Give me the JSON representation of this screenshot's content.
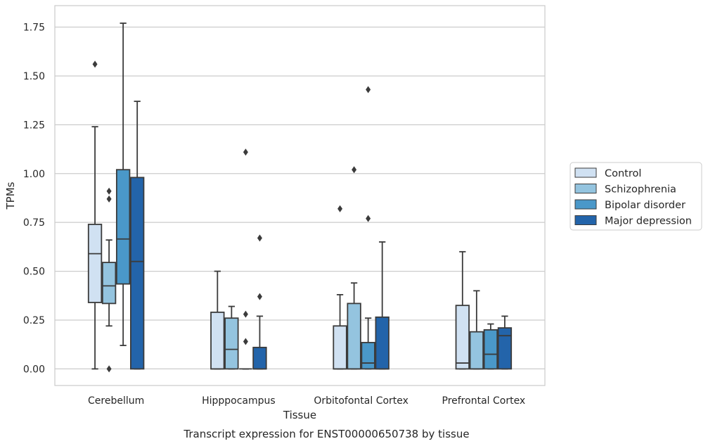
{
  "chart_data": {
    "type": "boxplot",
    "title": "",
    "xlabel": "Tissue",
    "ylabel": "TPMs",
    "caption": "Transcript expression for ENST00000650738 by tissue",
    "ylim": [
      -0.085,
      1.86
    ],
    "yticks": [
      0.0,
      0.25,
      0.5,
      0.75,
      1.0,
      1.25,
      1.5,
      1.75
    ],
    "ytick_labels": [
      "0.00",
      "0.25",
      "0.50",
      "0.75",
      "1.00",
      "1.25",
      "1.50",
      "1.75"
    ],
    "grid": "horizontal",
    "legend_position": "right",
    "categories": [
      "Cerebellum",
      "Hipppocampus",
      "Orbitofontal Cortex",
      "Prefrontal Cortex"
    ],
    "series": [
      {
        "name": "Control",
        "color": "#d0e1f2",
        "boxes": [
          {
            "whislo": 0.0,
            "q1": 0.34,
            "med": 0.59,
            "q3": 0.74,
            "whishi": 1.24,
            "fliers": [
              1.56
            ]
          },
          {
            "whislo": 0.0,
            "q1": 0.0,
            "med": 0.0,
            "q3": 0.29,
            "whishi": 0.5,
            "fliers": []
          },
          {
            "whislo": 0.0,
            "q1": 0.0,
            "med": 0.0,
            "q3": 0.22,
            "whishi": 0.38,
            "fliers": [
              0.82
            ]
          },
          {
            "whislo": 0.0,
            "q1": 0.0,
            "med": 0.03,
            "q3": 0.325,
            "whishi": 0.6,
            "fliers": []
          }
        ]
      },
      {
        "name": "Schizophrenia",
        "color": "#94c4df",
        "boxes": [
          {
            "whislo": 0.22,
            "q1": 0.335,
            "med": 0.425,
            "q3": 0.545,
            "whishi": 0.66,
            "fliers": [
              0.87,
              0.91,
              0.0
            ]
          },
          {
            "whislo": 0.0,
            "q1": 0.0,
            "med": 0.1,
            "q3": 0.26,
            "whishi": 0.32,
            "fliers": []
          },
          {
            "whislo": 0.0,
            "q1": 0.0,
            "med": 0.0,
            "q3": 0.335,
            "whishi": 0.44,
            "fliers": [
              1.02
            ]
          },
          {
            "whislo": 0.0,
            "q1": 0.0,
            "med": 0.0,
            "q3": 0.19,
            "whishi": 0.4,
            "fliers": []
          }
        ]
      },
      {
        "name": "Bipolar disorder",
        "color": "#4a98c9",
        "boxes": [
          {
            "whislo": 0.12,
            "q1": 0.435,
            "med": 0.665,
            "q3": 1.02,
            "whishi": 1.77,
            "fliers": []
          },
          {
            "whislo": 0.0,
            "q1": 0.0,
            "med": 0.0,
            "q3": 0.0,
            "whishi": 0.0,
            "fliers": [
              0.14,
              0.28,
              1.11
            ]
          },
          {
            "whislo": 0.0,
            "q1": 0.0,
            "med": 0.03,
            "q3": 0.135,
            "whishi": 0.26,
            "fliers": [
              0.77,
              1.43
            ]
          },
          {
            "whislo": 0.0,
            "q1": 0.0,
            "med": 0.075,
            "q3": 0.2,
            "whishi": 0.23,
            "fliers": []
          }
        ]
      },
      {
        "name": "Major depression",
        "color": "#2364aa",
        "boxes": [
          {
            "whislo": 0.0,
            "q1": 0.0,
            "med": 0.55,
            "q3": 0.98,
            "whishi": 1.37,
            "fliers": []
          },
          {
            "whislo": 0.0,
            "q1": 0.0,
            "med": 0.0,
            "q3": 0.11,
            "whishi": 0.27,
            "fliers": [
              0.37,
              0.67
            ]
          },
          {
            "whislo": 0.0,
            "q1": 0.0,
            "med": 0.0,
            "q3": 0.265,
            "whishi": 0.65,
            "fliers": []
          },
          {
            "whislo": 0.0,
            "q1": 0.0,
            "med": 0.17,
            "q3": 0.21,
            "whishi": 0.27,
            "fliers": []
          }
        ]
      }
    ]
  }
}
